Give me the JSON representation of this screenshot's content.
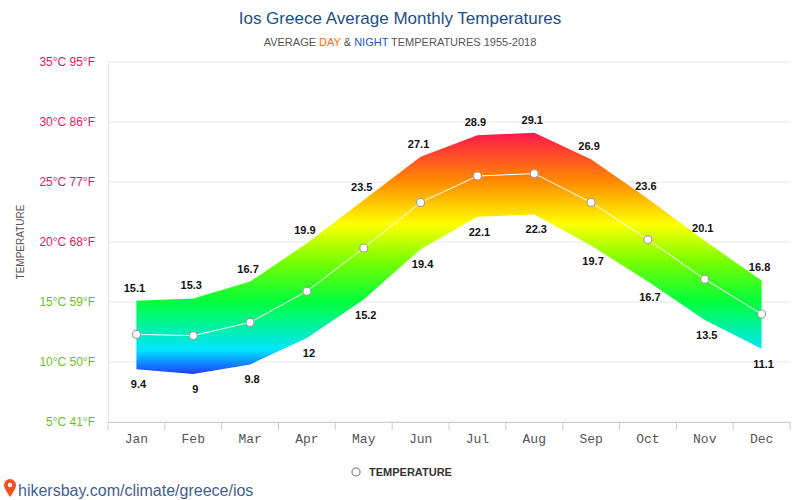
{
  "chart_data": {
    "type": "line",
    "title": "Ios Greece Average Monthly Temperatures",
    "subtitle": [
      {
        "text": "AVERAGE "
      },
      {
        "text": "DAY",
        "color": "#ff6d00"
      },
      {
        "text": " & "
      },
      {
        "text": "NIGHT",
        "color": "#1e56c8"
      },
      {
        "text": " TEMPERATURES 1955-2018"
      }
    ],
    "ylabel": "TEMPERATURE",
    "source": "hikersbay.com/climate/greece/ios",
    "categories": [
      "Jan",
      "Feb",
      "Mar",
      "Apr",
      "May",
      "Jun",
      "Jul",
      "Aug",
      "Sep",
      "Oct",
      "Nov",
      "Dec"
    ],
    "band": {
      "high": [
        15.1,
        15.3,
        16.7,
        19.9,
        23.5,
        27.1,
        28.9,
        29.1,
        26.9,
        23.6,
        20.1,
        16.8
      ],
      "low": [
        9.4,
        9,
        9.8,
        12,
        15.2,
        19.4,
        22.1,
        22.3,
        19.7,
        16.7,
        13.5,
        11.1
      ]
    },
    "series": [
      {
        "name": "TEMPERATURE",
        "type": "line",
        "color": "#ffffff",
        "marker": "circle",
        "values": [
          12.3,
          12.2,
          13.3,
          15.9,
          19.5,
          23.3,
          25.5,
          25.7,
          23.3,
          20.2,
          16.9,
          14.0
        ]
      }
    ],
    "ylim": [
      5,
      35
    ],
    "yticks": [
      {
        "value": 5,
        "label": "5°C 41°F"
      },
      {
        "value": 10,
        "label": "10°C 50°F"
      },
      {
        "value": 15,
        "label": "15°C 59°F"
      },
      {
        "value": 20,
        "label": "20°C 68°F"
      },
      {
        "value": 25,
        "label": "25°C 77°F"
      },
      {
        "value": 30,
        "label": "30°C 86°F"
      },
      {
        "value": 35,
        "label": "35°C 95°F"
      }
    ],
    "grid": true,
    "legend": "bottom",
    "data_labels": true
  }
}
